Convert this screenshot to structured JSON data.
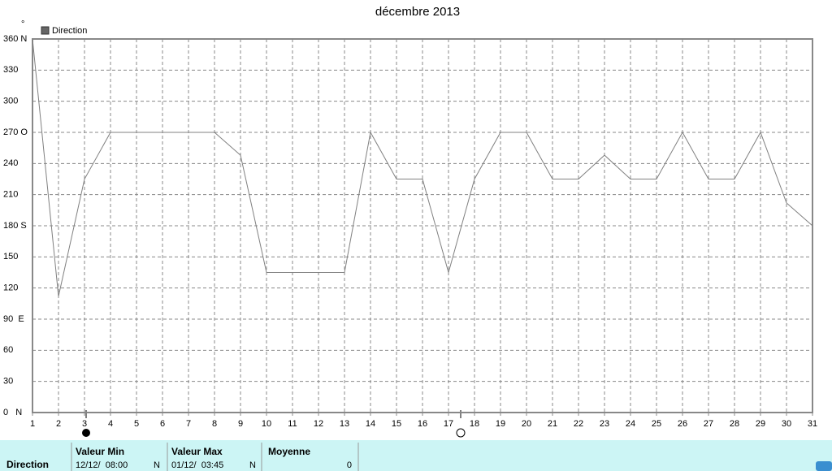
{
  "chart_data": {
    "type": "line",
    "title": "décembre 2013",
    "y_unit": "°",
    "x": [
      1,
      2,
      3,
      4,
      5,
      6,
      7,
      8,
      9,
      10,
      11,
      12,
      13,
      14,
      15,
      16,
      17,
      18,
      19,
      20,
      21,
      22,
      23,
      24,
      25,
      26,
      27,
      28,
      29,
      30,
      31
    ],
    "series": [
      {
        "name": "Direction",
        "color": "#808080",
        "values": [
          360,
          112,
          225,
          270,
          270,
          270,
          270,
          270,
          248,
          135,
          135,
          135,
          135,
          270,
          225,
          225,
          135,
          225,
          270,
          270,
          225,
          225,
          248,
          225,
          225,
          270,
          225,
          225,
          270,
          202,
          180
        ]
      }
    ],
    "xlim": [
      1,
      31
    ],
    "xticks": [
      1,
      2,
      3,
      4,
      5,
      6,
      7,
      8,
      9,
      10,
      11,
      12,
      13,
      14,
      15,
      16,
      17,
      18,
      19,
      20,
      21,
      22,
      23,
      24,
      25,
      26,
      27,
      28,
      29,
      30,
      31
    ],
    "ylim": [
      0,
      360
    ],
    "yticks": [
      {
        "value": 0,
        "label": "0   N"
      },
      30,
      60,
      {
        "value": 90,
        "label": "90  E"
      },
      120,
      150,
      {
        "value": 180,
        "label": "180 S"
      },
      210,
      240,
      {
        "value": 270,
        "label": "270 O"
      },
      300,
      330,
      {
        "value": 360,
        "label": "360 N"
      }
    ],
    "grid": true
  },
  "stats": {
    "row_label": "Direction",
    "columns": [
      {
        "header": "Valeur Min",
        "date": "12/12/  08:00",
        "direction": "N"
      },
      {
        "header": "Valeur Max",
        "date": "01/12/  03:45",
        "direction": "N"
      },
      {
        "header": "Moyenne",
        "value": 0
      }
    ]
  }
}
